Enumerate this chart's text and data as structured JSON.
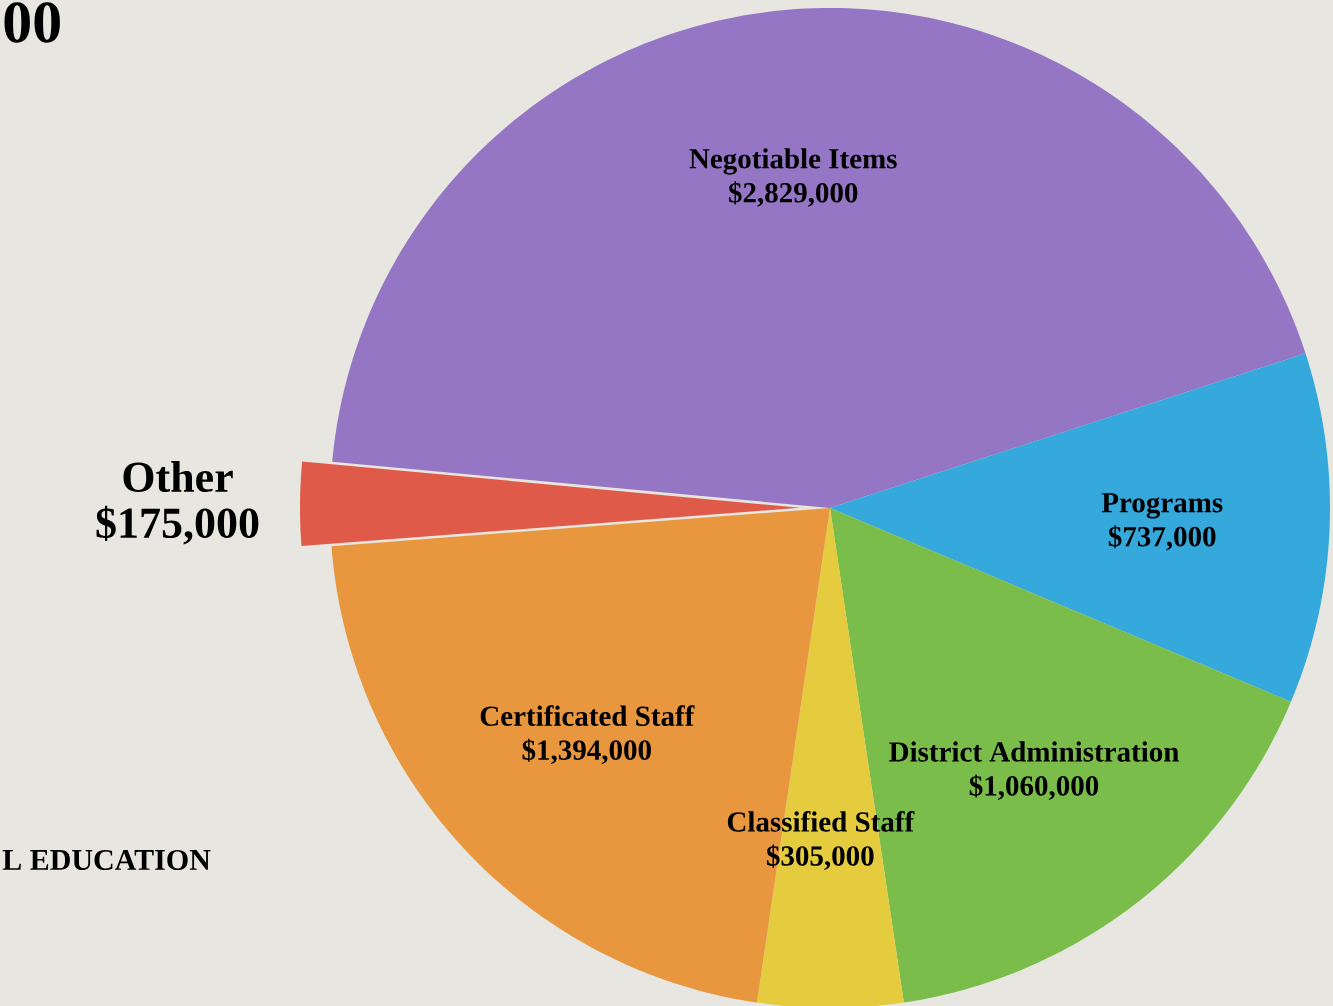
{
  "chart_data": {
    "type": "pie",
    "categories": [
      "Negotiable Items",
      "Programs",
      "District Administration",
      "Classified Staff",
      "Certificated Staff",
      "Other"
    ],
    "values": [
      2829000,
      737000,
      1060000,
      305000,
      1394000,
      175000
    ],
    "value_labels": [
      "$2,829,000",
      "$737,000",
      "$1,060,000",
      "$305,000",
      "$1,394,000",
      "$175,000"
    ],
    "colors": [
      "#9476c4",
      "#35a8dc",
      "#7bbd4a",
      "#e5cc3e",
      "#e8973e",
      "#e05a4a"
    ],
    "annotations": [
      "00",
      "L EDUCATION"
    ]
  }
}
